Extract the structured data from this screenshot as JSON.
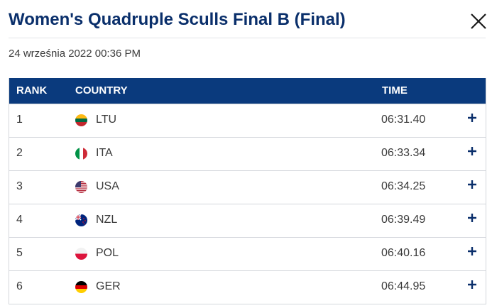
{
  "header": {
    "title": "Women's Quadruple Sculls Final B (Final)",
    "date": "24 września 2022 00:36 PM",
    "close_icon": "close-icon"
  },
  "table": {
    "columns": {
      "rank": "RANK",
      "country": "COUNTRY",
      "time": "TIME"
    },
    "rows": [
      {
        "rank": "1",
        "country": "LTU",
        "time": "06:31.40",
        "flag": "lithuania-flag-icon"
      },
      {
        "rank": "2",
        "country": "ITA",
        "time": "06:33.34",
        "flag": "italy-flag-icon"
      },
      {
        "rank": "3",
        "country": "USA",
        "time": "06:34.25",
        "flag": "usa-flag-icon"
      },
      {
        "rank": "4",
        "country": "NZL",
        "time": "06:39.49",
        "flag": "new-zealand-flag-icon"
      },
      {
        "rank": "5",
        "country": "POL",
        "time": "06:40.16",
        "flag": "poland-flag-icon"
      },
      {
        "rank": "6",
        "country": "GER",
        "time": "06:44.95",
        "flag": "germany-flag-icon"
      }
    ]
  },
  "colors": {
    "header_bg": "#0a3a7d",
    "title": "#0a2f6b",
    "expand_icon": "#0a2f6b"
  }
}
